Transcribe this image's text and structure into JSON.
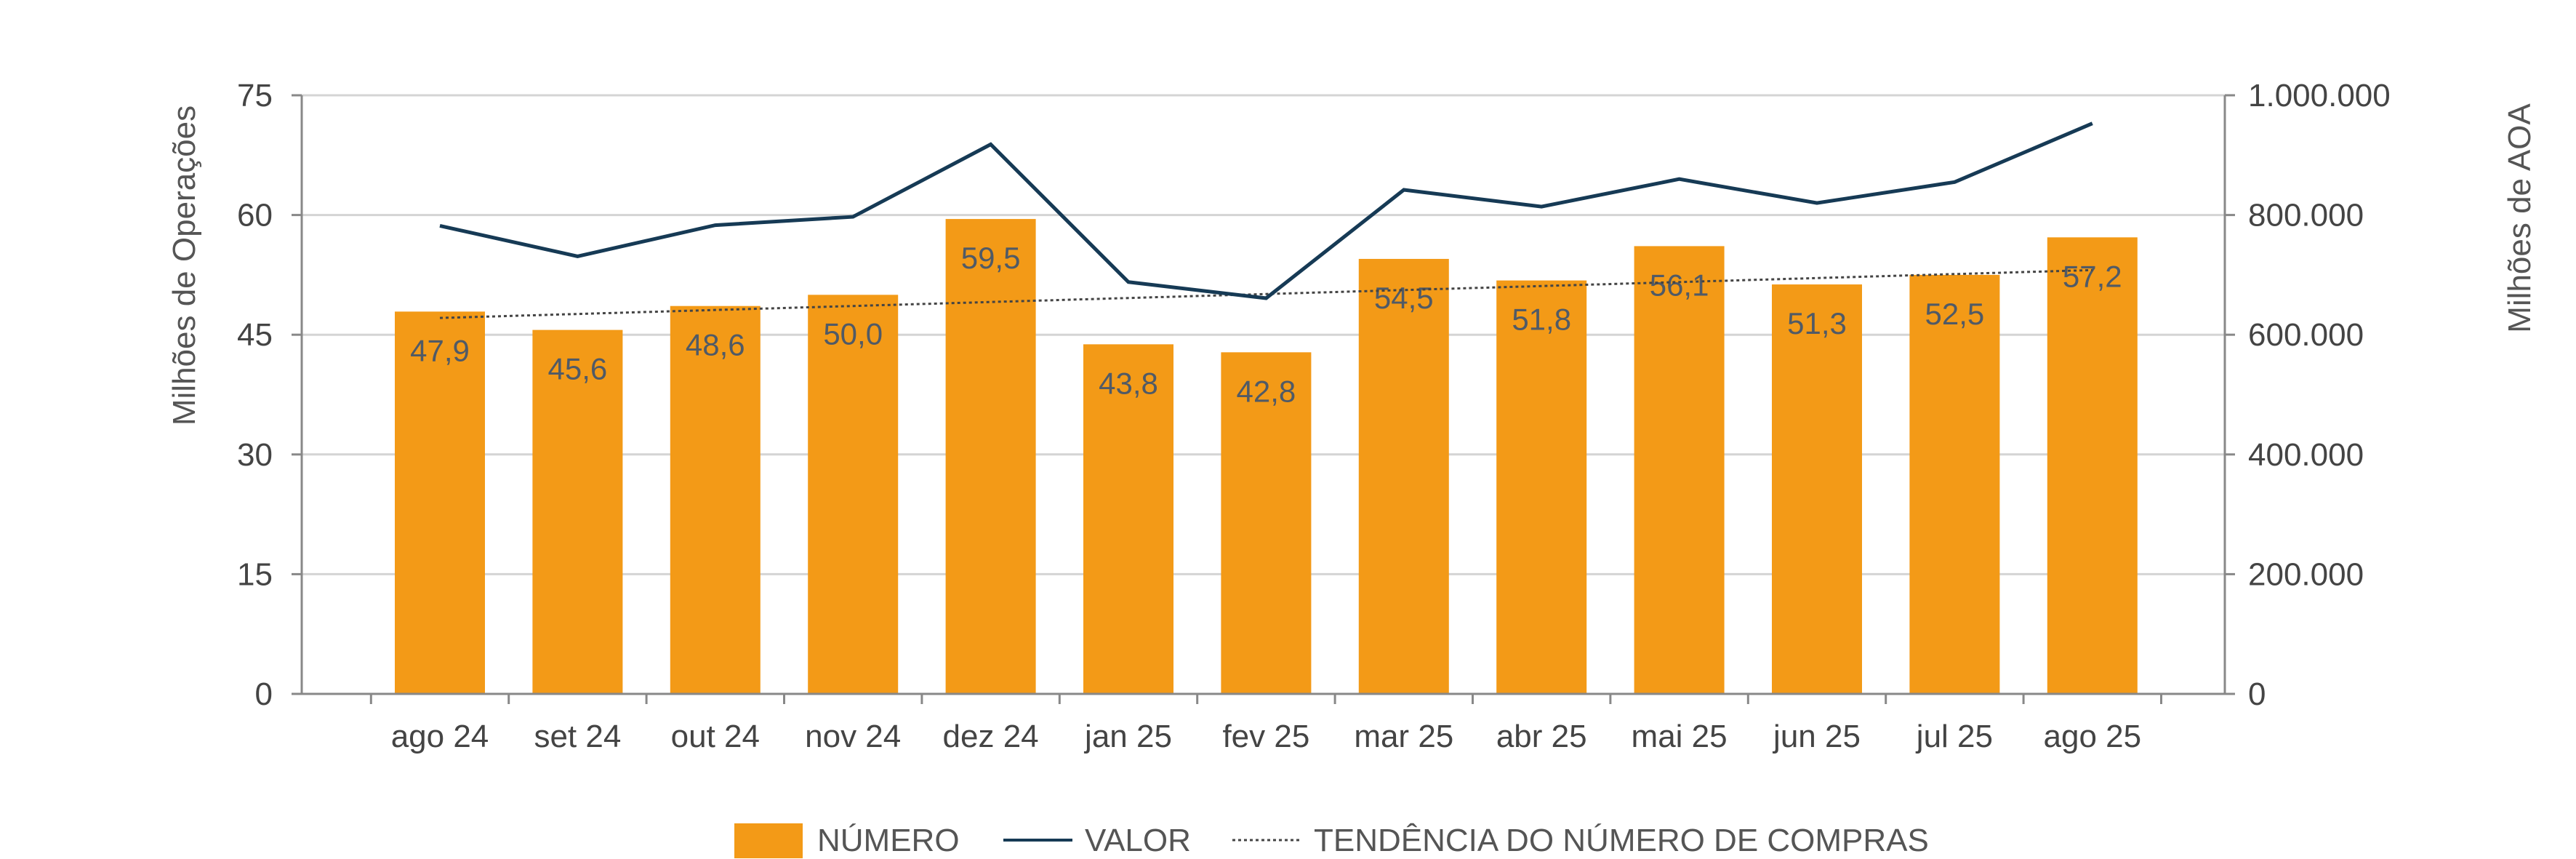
{
  "colors": {
    "bar": "#f39a17",
    "line": "#163a55",
    "trend": "#444444",
    "grid": "#d4d4d4",
    "axis": "#888888"
  },
  "chart_data": {
    "type": "bar",
    "categories": [
      "ago 24",
      "set 24",
      "out 24",
      "nov 24",
      "dez 24",
      "jan 25",
      "fev 25",
      "mar 25",
      "abr 25",
      "mai 25",
      "jun 25",
      "jul 25",
      "ago 25"
    ],
    "series": [
      {
        "name": "NÚMERO",
        "type": "bar",
        "axis": "left",
        "values": [
          47.9,
          45.6,
          48.6,
          50.0,
          59.5,
          43.8,
          42.8,
          54.5,
          51.8,
          56.1,
          51.3,
          52.5,
          57.2
        ],
        "labels": [
          "47,9",
          "45,6",
          "48,6",
          "50,0",
          "59,5",
          "43,8",
          "42,8",
          "54,5",
          "51,8",
          "56,1",
          "51,3",
          "52,5",
          "57,2"
        ]
      },
      {
        "name": "VALOR",
        "type": "line",
        "axis": "right",
        "values": [
          782000,
          731000,
          783000,
          797000,
          918000,
          688000,
          661000,
          842000,
          814000,
          860000,
          820000,
          855000,
          953000
        ]
      },
      {
        "name": "TENDÊNCIA DO NÚMERO DE COMPRAS",
        "type": "trend",
        "axis": "left",
        "values": [
          47.1,
          47.6,
          48.1,
          48.6,
          49.1,
          49.6,
          50.1,
          50.6,
          51.1,
          51.6,
          52.1,
          52.6,
          53.1
        ]
      }
    ],
    "y_left": {
      "label": "Milhões de Operações",
      "range": [
        0,
        75
      ],
      "ticks": [
        0,
        15,
        30,
        45,
        60,
        75
      ],
      "tick_labels": [
        "0",
        "15",
        "30",
        "45",
        "60",
        "75"
      ]
    },
    "y_right": {
      "label": "Milhões de AOA",
      "range": [
        0,
        1000000
      ],
      "ticks": [
        0,
        200000,
        400000,
        600000,
        800000,
        1000000
      ],
      "tick_labels": [
        "0",
        "200.000",
        "400.000",
        "600.000",
        "800.000",
        "1.000.000"
      ]
    },
    "grid": true,
    "legend_position": "bottom-center"
  }
}
